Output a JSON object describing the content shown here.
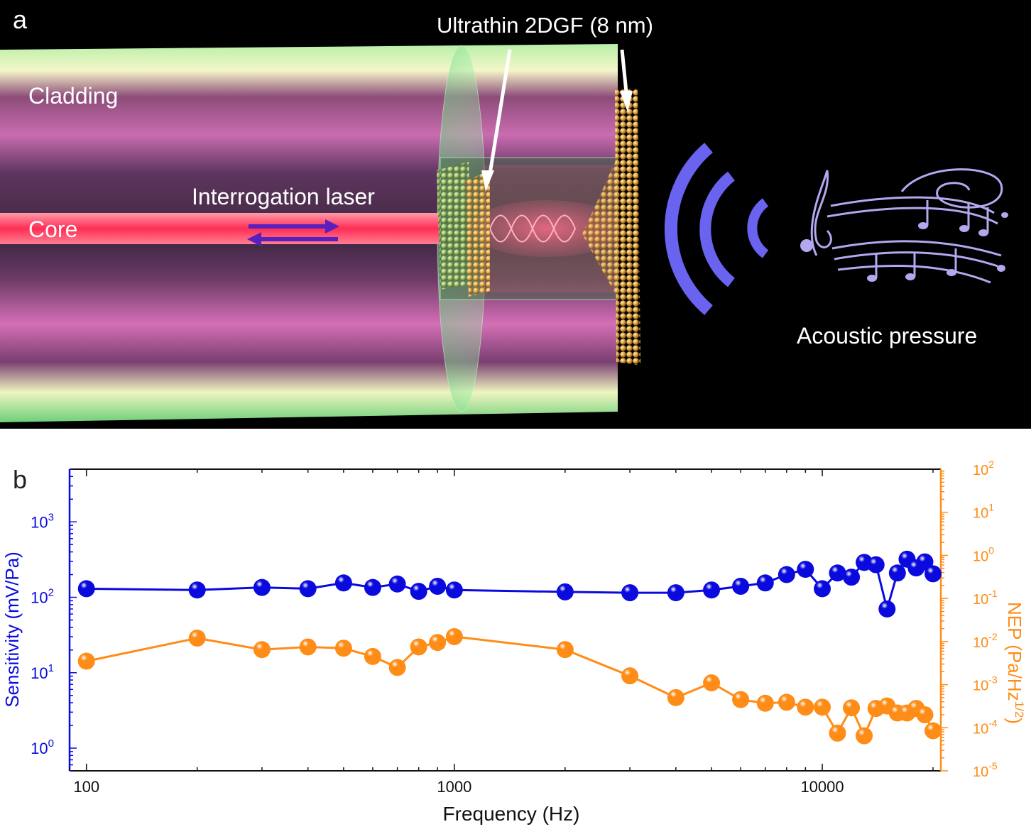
{
  "panel_a": {
    "label": "a",
    "labels": {
      "graphene": "Ultrathin 2DGF (8 nm)",
      "cladding": "Cladding",
      "core": "Core",
      "laser": "Interrogation laser",
      "acoustic": "Acoustic pressure"
    },
    "colors": {
      "core": "#ff3c5a",
      "arrows": "#5a1fbf",
      "waves": "#6a63f0",
      "notes": "#b2a8f0"
    },
    "icons": [
      "fiber-icon",
      "graphene-film-icon",
      "sound-wave-icon",
      "music-notes-icon"
    ]
  },
  "chart_data": {
    "panel_label": "b",
    "type": "scatter-line",
    "x_scale": "log",
    "y_scale": "log",
    "xlabel": "Frequency (Hz)",
    "ylabel_left": "Sensitivity (mV/Pa)",
    "ylabel_right_base": "NEP (Pa/Hz",
    "ylabel_right_sup": "1/2",
    "ylabel_right_close": ")",
    "xlim": [
      90,
      21000
    ],
    "ylim_left": [
      0.5,
      5000
    ],
    "ylim_right": [
      1e-05,
      100
    ],
    "xticks": [
      {
        "value": 100,
        "label": "100"
      },
      {
        "value": 1000,
        "label": "1000"
      },
      {
        "value": 10000,
        "label": "10000"
      }
    ],
    "yticks_left": [
      {
        "value": 1,
        "base": "10",
        "exp": "0"
      },
      {
        "value": 10,
        "base": "10",
        "exp": "1"
      },
      {
        "value": 100,
        "base": "10",
        "exp": "2"
      },
      {
        "value": 1000,
        "base": "10",
        "exp": "3"
      }
    ],
    "yticks_right": [
      {
        "value": 1e-05,
        "base": "10",
        "exp": "-5"
      },
      {
        "value": 0.0001,
        "base": "10",
        "exp": "-4"
      },
      {
        "value": 0.001,
        "base": "10",
        "exp": "-3"
      },
      {
        "value": 0.01,
        "base": "10",
        "exp": "-2"
      },
      {
        "value": 0.1,
        "base": "10",
        "exp": "-1"
      },
      {
        "value": 1,
        "base": "10",
        "exp": "0"
      },
      {
        "value": 10,
        "base": "10",
        "exp": "1"
      },
      {
        "value": 100,
        "base": "10",
        "exp": "2"
      }
    ],
    "series": [
      {
        "axis": "left",
        "color": "#0a0adf",
        "points": [
          [
            100,
            130
          ],
          [
            200,
            125
          ],
          [
            300,
            135
          ],
          [
            400,
            130
          ],
          [
            500,
            155
          ],
          [
            600,
            135
          ],
          [
            700,
            150
          ],
          [
            800,
            120
          ],
          [
            900,
            140
          ],
          [
            1000,
            125
          ],
          [
            2000,
            118
          ],
          [
            3000,
            115
          ],
          [
            4000,
            115
          ],
          [
            5000,
            125
          ],
          [
            6000,
            140
          ],
          [
            7000,
            155
          ],
          [
            8000,
            200
          ],
          [
            9000,
            235
          ],
          [
            10000,
            130
          ],
          [
            11000,
            210
          ],
          [
            12000,
            185
          ],
          [
            13000,
            290
          ],
          [
            14000,
            270
          ],
          [
            15000,
            70
          ],
          [
            16000,
            210
          ],
          [
            17000,
            320
          ],
          [
            18000,
            245
          ],
          [
            19000,
            295
          ],
          [
            20000,
            205
          ]
        ]
      },
      {
        "axis": "right",
        "color": "#ff8c17",
        "points": [
          [
            100,
            0.0035
          ],
          [
            200,
            0.012
          ],
          [
            300,
            0.0065
          ],
          [
            400,
            0.0075
          ],
          [
            500,
            0.007
          ],
          [
            600,
            0.0045
          ],
          [
            700,
            0.0025
          ],
          [
            800,
            0.0075
          ],
          [
            900,
            0.0095
          ],
          [
            1000,
            0.013
          ],
          [
            2000,
            0.0065
          ],
          [
            3000,
            0.0016
          ],
          [
            4000,
            0.0005
          ],
          [
            5000,
            0.0011
          ],
          [
            6000,
            0.00045
          ],
          [
            7000,
            0.00037
          ],
          [
            8000,
            0.00039
          ],
          [
            9000,
            0.0003
          ],
          [
            10000,
            0.0003
          ],
          [
            11000,
            7.5e-05
          ],
          [
            12000,
            0.00029
          ],
          [
            13000,
            6.5e-05
          ],
          [
            14000,
            0.00028
          ],
          [
            15000,
            0.00032
          ],
          [
            16000,
            0.00022
          ],
          [
            17000,
            0.00022
          ],
          [
            18000,
            0.00028
          ],
          [
            19000,
            0.0002
          ],
          [
            20000,
            8.5e-05
          ]
        ]
      }
    ]
  }
}
